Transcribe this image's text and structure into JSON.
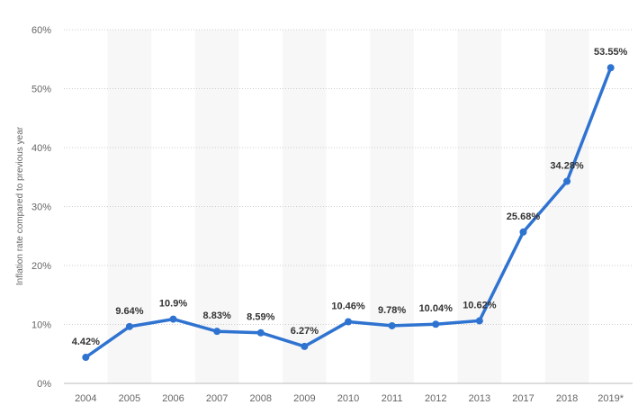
{
  "chart_data": {
    "type": "line",
    "title": "",
    "xlabel": "",
    "ylabel": "Inflation rate compared to previous year",
    "categories": [
      "2004",
      "2005",
      "2006",
      "2007",
      "2008",
      "2009",
      "2010",
      "2011",
      "2012",
      "2013",
      "2017",
      "2018",
      "2019*"
    ],
    "series": [
      {
        "values": [
          4.42,
          9.64,
          10.9,
          8.83,
          8.59,
          6.27,
          10.46,
          9.78,
          10.04,
          10.62,
          25.68,
          34.28,
          53.55
        ],
        "labels": [
          "4.42%",
          "9.64%",
          "10.9%",
          "8.83%",
          "8.59%",
          "6.27%",
          "10.46%",
          "9.78%",
          "10.04%",
          "10.62%",
          "25.68%",
          "34.28%",
          "53.55%"
        ]
      }
    ],
    "ylim": [
      0,
      60
    ],
    "yticks": [
      0,
      10,
      20,
      30,
      40,
      50,
      60
    ],
    "ytick_labels": [
      "0%",
      "10%",
      "20%",
      "30%",
      "40%",
      "50%",
      "60%"
    ],
    "grid": true,
    "line_color": "#2f73d1",
    "band_color": "#f7f7f7"
  }
}
